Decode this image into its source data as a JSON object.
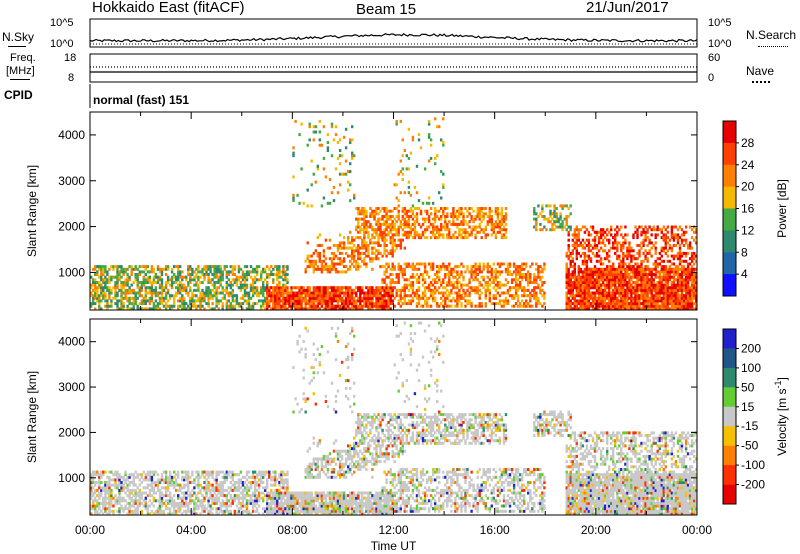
{
  "header": {
    "radar": "Hokkaido East (fitACF)",
    "beam": "Beam 15",
    "date": "21/Jun/2017"
  },
  "nsky_panel": {
    "left_label": "N.Sky",
    "right_label": "N.Search",
    "left_ticks": [
      "10^5",
      "10^0"
    ],
    "right_ticks": [
      "10^5",
      "10^0"
    ]
  },
  "freq_panel": {
    "left_label_1": "Freq.",
    "left_label_2": "[MHz]",
    "left_ticks": [
      "18",
      "8"
    ],
    "right_ticks": [
      "60",
      "0"
    ],
    "right_label": "Nave"
  },
  "cpid_panel": {
    "label": "CPID",
    "mode": "normal (fast) 151"
  },
  "chart_data": [
    {
      "type": "heatmap",
      "name": "power",
      "xlabel": "",
      "ylabel": "Slant Range [km]",
      "ylim": [
        180,
        4500
      ],
      "yticks": [
        "1000",
        "2000",
        "3000",
        "4000"
      ],
      "colorbar": {
        "label": "Power [dB]",
        "ticks": [
          "28",
          "24",
          "20",
          "16",
          "12",
          "8",
          "4"
        ],
        "colors": [
          "#e60000",
          "#ff4000",
          "#ff8000",
          "#f5b800",
          "#44aa44",
          "#2e8a6e",
          "#2266aa",
          "#1010ff"
        ]
      }
    },
    {
      "type": "heatmap",
      "name": "velocity",
      "xlabel": "Time UT",
      "ylabel": "Slant Range [km]",
      "ylim": [
        180,
        4500
      ],
      "yticks": [
        "1000",
        "2000",
        "3000",
        "4000"
      ],
      "xticks": [
        "00:00",
        "04:00",
        "08:00",
        "12:00",
        "16:00",
        "20:00",
        "00:00"
      ],
      "colorbar": {
        "label": "Velocity [m s^-1]",
        "ticks": [
          "200",
          "100",
          "50",
          "15",
          "-15",
          "-50",
          "-100",
          "-200"
        ],
        "colors": [
          "#2020cc",
          "#225588",
          "#2e8a6e",
          "#66cc33",
          "#c8c8c8",
          "#f5c000",
          "#ff8000",
          "#ff3000",
          "#e60000"
        ]
      }
    }
  ]
}
